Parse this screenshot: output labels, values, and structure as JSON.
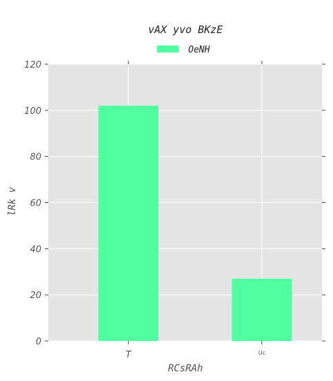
{
  "chart_data": {
    "type": "bar",
    "title": "vAX yvo BKzE",
    "xlabel": "RCsRAh",
    "ylabel": "lRk  v",
    "categories": [
      "T",
      "Uc"
    ],
    "series": [
      {
        "name": "OeNH",
        "values": [
          102,
          27
        ]
      }
    ],
    "ylim": [
      0,
      120
    ],
    "yticks": [
      0,
      20,
      40,
      60,
      80,
      100,
      120
    ],
    "grid": true,
    "legend_position": "top-center",
    "colors": {
      "bar": "#50ff9f",
      "plot_background": "#e5e5e5",
      "grid": "#ffffff"
    }
  }
}
